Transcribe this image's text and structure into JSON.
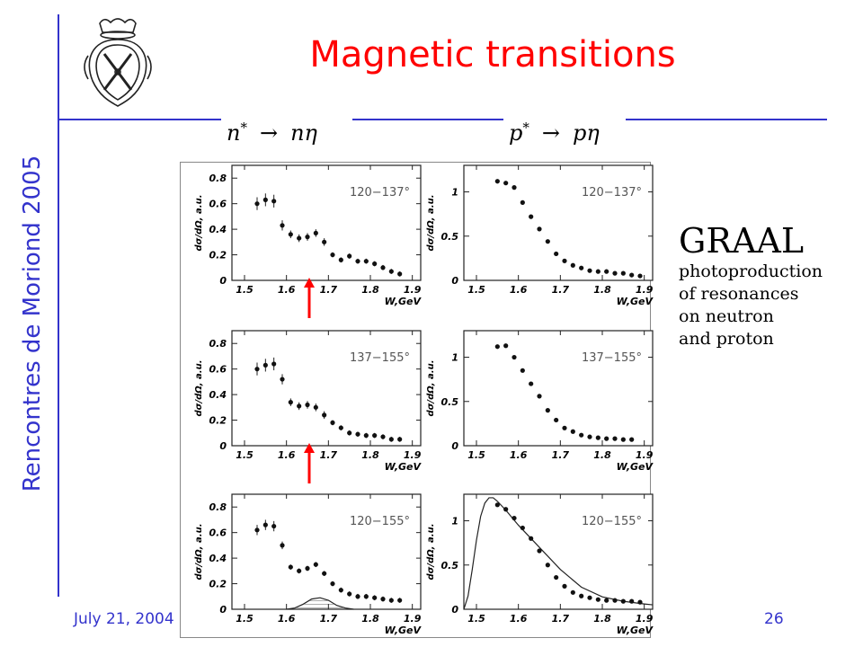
{
  "slide": {
    "title": "Magnetic transitions",
    "side_title": "Rencontres de Moriond 2005",
    "date": "July 21, 2004",
    "page_number": "26",
    "accent_color": "#3333cc",
    "title_color": "#ff0000",
    "logo_icon": "crest-icon"
  },
  "formulas": {
    "neutron": {
      "base": "n",
      "sup": "*",
      "arrow": "→",
      "product": "nη"
    },
    "proton": {
      "base": "p",
      "sup": "*",
      "arrow": "→",
      "product": "pη"
    }
  },
  "annotation": {
    "title": "GRAAL",
    "lines": [
      "photoproduction",
      "of resonances",
      "on neutron",
      "and proton"
    ]
  },
  "chart_data": [
    {
      "type": "scatter",
      "panel": "neutron-1",
      "angle_label": "120−137°",
      "xlabel": "W,GeV",
      "ylabel": "dσ/dΩ, a.u.",
      "xlim": [
        1.47,
        1.92
      ],
      "ylim": [
        0,
        0.9
      ],
      "xticks": [
        1.5,
        1.6,
        1.7,
        1.8,
        1.9
      ],
      "yticks": [
        0,
        0.2,
        0.4,
        0.6,
        0.8
      ],
      "x": [
        1.53,
        1.55,
        1.57,
        1.59,
        1.61,
        1.63,
        1.65,
        1.67,
        1.69,
        1.71,
        1.73,
        1.75,
        1.77,
        1.79,
        1.81,
        1.83,
        1.85,
        1.87
      ],
      "y": [
        0.6,
        0.63,
        0.62,
        0.43,
        0.36,
        0.33,
        0.34,
        0.37,
        0.3,
        0.2,
        0.16,
        0.19,
        0.15,
        0.15,
        0.13,
        0.1,
        0.07,
        0.05
      ],
      "err": [
        0.05,
        0.05,
        0.05,
        0.04,
        0.03,
        0.03,
        0.03,
        0.03,
        0.03,
        0.02,
        0.02,
        0.02,
        0.02,
        0.02,
        0.02,
        0.02,
        0.02,
        0.02
      ]
    },
    {
      "type": "scatter",
      "panel": "proton-1",
      "angle_label": "120−137°",
      "xlabel": "W,GeV",
      "ylabel": "dσ/dΩ, a.u.",
      "xlim": [
        1.47,
        1.92
      ],
      "ylim": [
        0,
        1.3
      ],
      "xticks": [
        1.5,
        1.6,
        1.7,
        1.8,
        1.9
      ],
      "yticks": [
        0,
        0.5,
        1
      ],
      "x": [
        1.55,
        1.57,
        1.59,
        1.61,
        1.63,
        1.65,
        1.67,
        1.69,
        1.71,
        1.73,
        1.75,
        1.77,
        1.79,
        1.81,
        1.83,
        1.85,
        1.87,
        1.89
      ],
      "y": [
        1.12,
        1.1,
        1.05,
        0.88,
        0.72,
        0.58,
        0.44,
        0.3,
        0.22,
        0.17,
        0.14,
        0.11,
        0.1,
        0.1,
        0.08,
        0.08,
        0.06,
        0.05
      ]
    },
    {
      "type": "scatter",
      "panel": "neutron-2",
      "angle_label": "137−155°",
      "xlabel": "W,GeV",
      "ylabel": "dσ/dΩ, a.u.",
      "xlim": [
        1.47,
        1.92
      ],
      "ylim": [
        0,
        0.9
      ],
      "xticks": [
        1.5,
        1.6,
        1.7,
        1.8,
        1.9
      ],
      "yticks": [
        0,
        0.2,
        0.4,
        0.6,
        0.8
      ],
      "x": [
        1.53,
        1.55,
        1.57,
        1.59,
        1.61,
        1.63,
        1.65,
        1.67,
        1.69,
        1.71,
        1.73,
        1.75,
        1.77,
        1.79,
        1.81,
        1.83,
        1.85,
        1.87
      ],
      "y": [
        0.6,
        0.63,
        0.64,
        0.52,
        0.34,
        0.31,
        0.32,
        0.3,
        0.24,
        0.18,
        0.14,
        0.1,
        0.09,
        0.08,
        0.08,
        0.07,
        0.05,
        0.05
      ],
      "err": [
        0.05,
        0.05,
        0.05,
        0.04,
        0.03,
        0.03,
        0.03,
        0.03,
        0.03,
        0.02,
        0.02,
        0.02,
        0.02,
        0.02,
        0.02,
        0.02,
        0.02,
        0.02
      ]
    },
    {
      "type": "scatter",
      "panel": "proton-2",
      "angle_label": "137−155°",
      "xlabel": "W,GeV",
      "ylabel": "dσ/dΩ, a.u.",
      "xlim": [
        1.47,
        1.92
      ],
      "ylim": [
        0,
        1.3
      ],
      "xticks": [
        1.5,
        1.6,
        1.7,
        1.8,
        1.9
      ],
      "yticks": [
        0,
        0.5,
        1
      ],
      "x": [
        1.55,
        1.57,
        1.59,
        1.61,
        1.63,
        1.65,
        1.67,
        1.69,
        1.71,
        1.73,
        1.75,
        1.77,
        1.79,
        1.81,
        1.83,
        1.85,
        1.87
      ],
      "y": [
        1.12,
        1.13,
        1.0,
        0.85,
        0.7,
        0.56,
        0.4,
        0.29,
        0.2,
        0.16,
        0.12,
        0.1,
        0.09,
        0.08,
        0.08,
        0.07,
        0.07
      ]
    },
    {
      "type": "scatter",
      "panel": "neutron-3",
      "angle_label": "120−155°",
      "xlabel": "W,GeV",
      "ylabel": "dσ/dΩ, a.u.",
      "xlim": [
        1.47,
        1.92
      ],
      "ylim": [
        0,
        0.9
      ],
      "xticks": [
        1.5,
        1.6,
        1.7,
        1.8,
        1.9
      ],
      "yticks": [
        0,
        0.2,
        0.4,
        0.6,
        0.8
      ],
      "x": [
        1.53,
        1.55,
        1.57,
        1.59,
        1.61,
        1.63,
        1.65,
        1.67,
        1.69,
        1.71,
        1.73,
        1.75,
        1.77,
        1.79,
        1.81,
        1.83,
        1.85,
        1.87
      ],
      "y": [
        0.62,
        0.66,
        0.65,
        0.5,
        0.33,
        0.3,
        0.32,
        0.35,
        0.28,
        0.2,
        0.15,
        0.12,
        0.1,
        0.1,
        0.09,
        0.08,
        0.07,
        0.07
      ],
      "err": [
        0.04,
        0.04,
        0.04,
        0.03,
        0.02,
        0.02,
        0.02,
        0.02,
        0.02,
        0.02,
        0.02,
        0.02,
        0.02,
        0.02,
        0.02,
        0.02,
        0.02,
        0.02
      ],
      "curve": {
        "type": "line",
        "shading": "hatched",
        "x": [
          1.6,
          1.62,
          1.64,
          1.66,
          1.68,
          1.7,
          1.72,
          1.74,
          1.76
        ],
        "y": [
          0.0,
          0.01,
          0.04,
          0.08,
          0.09,
          0.07,
          0.03,
          0.01,
          0.0
        ]
      }
    },
    {
      "type": "scatter",
      "panel": "proton-3",
      "angle_label": "120−155°",
      "xlabel": "W,GeV",
      "ylabel": "dσ/dΩ, a.u.",
      "xlim": [
        1.47,
        1.92
      ],
      "ylim": [
        0,
        1.3
      ],
      "xticks": [
        1.5,
        1.6,
        1.7,
        1.8,
        1.9
      ],
      "yticks": [
        0,
        0.5,
        1
      ],
      "x": [
        1.55,
        1.57,
        1.59,
        1.61,
        1.63,
        1.65,
        1.67,
        1.69,
        1.71,
        1.73,
        1.75,
        1.77,
        1.79,
        1.81,
        1.83,
        1.85,
        1.87,
        1.89
      ],
      "y": [
        1.18,
        1.13,
        1.03,
        0.92,
        0.8,
        0.66,
        0.5,
        0.36,
        0.26,
        0.19,
        0.15,
        0.13,
        0.11,
        0.1,
        0.1,
        0.09,
        0.09,
        0.08
      ],
      "curve": {
        "type": "line",
        "x": [
          1.47,
          1.48,
          1.49,
          1.5,
          1.51,
          1.52,
          1.53,
          1.54,
          1.55,
          1.57,
          1.6,
          1.65,
          1.7,
          1.75,
          1.8,
          1.85,
          1.9,
          1.92
        ],
        "y": [
          0.0,
          0.15,
          0.45,
          0.78,
          1.05,
          1.2,
          1.26,
          1.26,
          1.22,
          1.12,
          0.95,
          0.7,
          0.45,
          0.25,
          0.14,
          0.09,
          0.06,
          0.05
        ]
      }
    }
  ]
}
